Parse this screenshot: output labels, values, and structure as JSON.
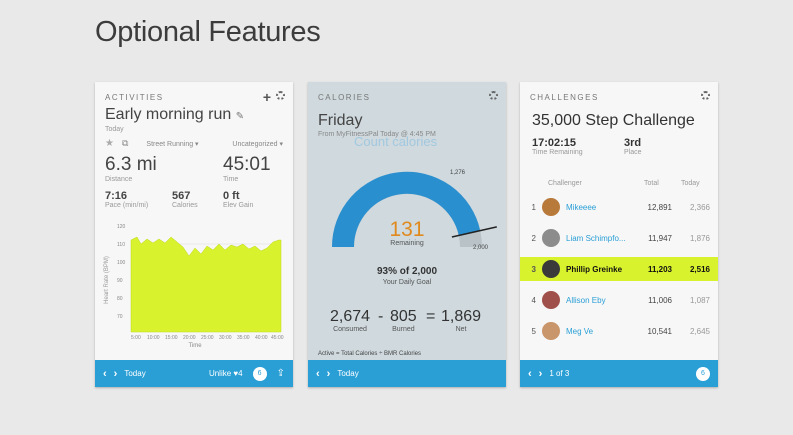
{
  "page": {
    "title": "Optional Features"
  },
  "activities": {
    "header": "ACTIVITIES",
    "title": "Early morning run",
    "date": "Today",
    "type": "Street Running",
    "category": "Uncategorized",
    "distance": {
      "value": "6.3 mi",
      "label": "Distance"
    },
    "time": {
      "value": "45:01",
      "label": "Time"
    },
    "pace": {
      "value": "7:16",
      "label": "Pace (min/mi)"
    },
    "calories": {
      "value": "567",
      "label": "Calories"
    },
    "elev": {
      "value": "0 ft",
      "label": "Elev Gain"
    },
    "chart_y_label": "Heart Rate (BPM)",
    "chart_x_label": "Time",
    "footer_date": "Today",
    "footer_unlike": "Unlike ♥4",
    "comment_count": "6"
  },
  "calories": {
    "header": "CALORIES",
    "day": "Friday",
    "from": "From MyFitnessPal Today @ 4:45 PM",
    "overlay": "Count calories",
    "gauge_max_label": "1,276",
    "gauge_end_label": "2,000",
    "remaining_value": "131",
    "remaining_label": "Remaining",
    "goal_pct": "93% of 2,000",
    "goal_label": "Your Daily Goal",
    "consumed_value": "2,674",
    "consumed_label": "Consumed",
    "minus": "-",
    "burned_value": "805",
    "burned_label": "Burned",
    "equals": "=",
    "net_value": "1,869",
    "net_label": "Net",
    "note": "Active = Total Calories ÷ BMR Calories",
    "footer_date": "Today",
    "fraction": 0.93
  },
  "challenges": {
    "header": "CHALLENGES",
    "title": "35,000 Step Challenge",
    "time_remaining": "17:02:15",
    "time_remaining_label": "Time Remaining",
    "place": "3rd",
    "place_label": "Place",
    "col_challenger": "Challenger",
    "col_total": "Total",
    "col_today": "Today",
    "rows": [
      {
        "rank": "1",
        "name": "Mikeeee",
        "total": "12,891",
        "today": "2,366",
        "color": "#b87a3a"
      },
      {
        "rank": "2",
        "name": "Liam Schimpfo...",
        "total": "11,947",
        "today": "1,876",
        "color": "#8c8c8c"
      },
      {
        "rank": "3",
        "name": "Phillip Greinke",
        "total": "11,203",
        "today": "2,516",
        "color": "#3a3a3a"
      },
      {
        "rank": "4",
        "name": "Allison Eby",
        "total": "11,006",
        "today": "1,087",
        "color": "#a0504a"
      },
      {
        "rank": "5",
        "name": "Meg Ve",
        "total": "10,541",
        "today": "2,645",
        "color": "#c9956a"
      }
    ],
    "footer_page": "1 of 3",
    "accent": "#2a9fd6",
    "highlight": "#d8f22e"
  }
}
